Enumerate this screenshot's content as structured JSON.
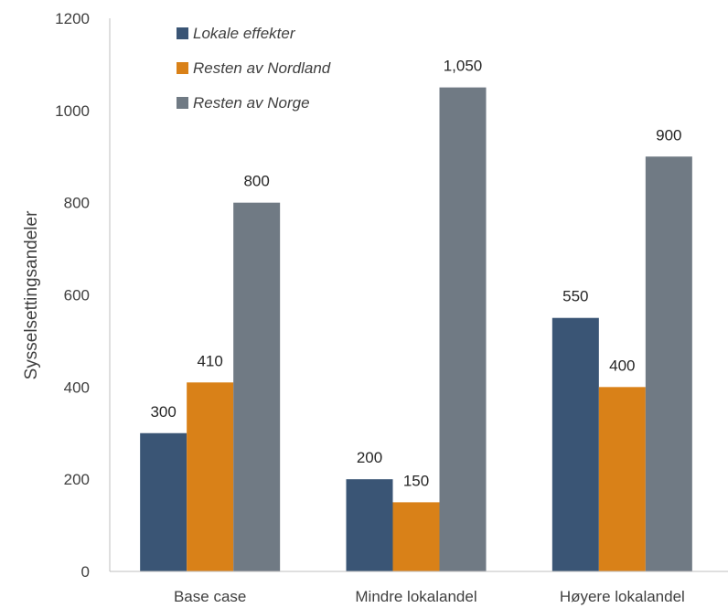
{
  "chart_data": {
    "type": "bar",
    "categories": [
      "Base case",
      "Mindre lokalandel",
      "Høyere lokalandel"
    ],
    "series": [
      {
        "name": "Lokale effekter",
        "values": [
          300,
          200,
          550
        ],
        "labels": [
          "300",
          "200",
          "550"
        ],
        "color": "#3a5575"
      },
      {
        "name": "Resten av Nordland",
        "values": [
          410,
          150,
          400
        ],
        "labels": [
          "410",
          "150",
          "400"
        ],
        "color": "#d98118"
      },
      {
        "name": "Resten av Norge",
        "values": [
          800,
          1050,
          900
        ],
        "labels": [
          "800",
          "1,050",
          "900"
        ],
        "color": "#707a84"
      }
    ],
    "ylabel": "Sysselsettingsandeler",
    "ylim": [
      0,
      1200
    ],
    "yticks": [
      0,
      200,
      400,
      600,
      800,
      1000,
      1200
    ],
    "legend_position": "top-left",
    "grid": false
  }
}
